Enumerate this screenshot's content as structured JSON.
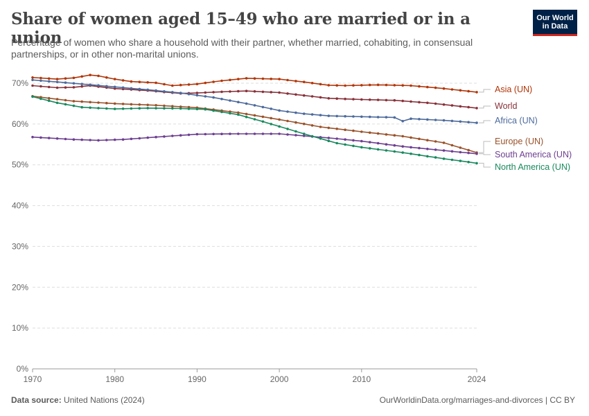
{
  "header": {
    "title": "Share of women aged 15–49 who are married or in a union",
    "subtitle": "Percentage of women who share a household with their partner, whether married, cohabiting, in consensual partnerships, or in other non-marital unions."
  },
  "logo": {
    "line1": "Our World",
    "line2": "in Data"
  },
  "footer": {
    "source_label": "Data source:",
    "source_value": "United Nations (2024)",
    "url": "OurWorldinData.org/marriages-and-divorces | CC BY"
  },
  "chart_data": {
    "type": "line",
    "title": "Share of women aged 15–49 who are married or in a union",
    "xlabel": "",
    "ylabel": "",
    "xlim": [
      1970,
      2024
    ],
    "ylim": [
      0,
      70
    ],
    "x_ticks": [
      1970,
      1980,
      1990,
      2000,
      2010,
      2024
    ],
    "x_tick_labels": [
      "1970",
      "1980",
      "1990",
      "2000",
      "2010",
      "2024"
    ],
    "y_ticks": [
      0,
      10,
      20,
      30,
      40,
      50,
      60,
      70
    ],
    "y_tick_labels": [
      "0%",
      "10%",
      "20%",
      "30%",
      "40%",
      "50%",
      "60%",
      "70%"
    ],
    "grid": "horizontal dashed",
    "legend": "labels at right end of lines",
    "series": [
      {
        "name": "Asia (UN)",
        "color": "#b13507",
        "points": [
          [
            1970,
            71.4
          ],
          [
            1973,
            71.0
          ],
          [
            1975,
            71.3
          ],
          [
            1977,
            72.0
          ],
          [
            1978,
            71.8
          ],
          [
            1980,
            71.0
          ],
          [
            1982,
            70.4
          ],
          [
            1985,
            70.1
          ],
          [
            1987,
            69.4
          ],
          [
            1990,
            69.8
          ],
          [
            1993,
            70.6
          ],
          [
            1996,
            71.2
          ],
          [
            2000,
            71.0
          ],
          [
            2003,
            70.3
          ],
          [
            2006,
            69.5
          ],
          [
            2008,
            69.4
          ],
          [
            2012,
            69.6
          ],
          [
            2016,
            69.4
          ],
          [
            2020,
            68.7
          ],
          [
            2024,
            67.8
          ]
        ]
      },
      {
        "name": "World",
        "color": "#883039",
        "points": [
          [
            1970,
            69.4
          ],
          [
            1973,
            68.9
          ],
          [
            1975,
            69.0
          ],
          [
            1977,
            69.4
          ],
          [
            1980,
            68.7
          ],
          [
            1984,
            68.2
          ],
          [
            1988,
            67.5
          ],
          [
            1990,
            67.6
          ],
          [
            1993,
            67.9
          ],
          [
            1996,
            68.1
          ],
          [
            2000,
            67.7
          ],
          [
            2003,
            67.0
          ],
          [
            2006,
            66.3
          ],
          [
            2010,
            66.0
          ],
          [
            2014,
            65.8
          ],
          [
            2018,
            65.2
          ],
          [
            2024,
            63.9
          ]
        ]
      },
      {
        "name": "Africa (UN)",
        "color": "#4c6a9c",
        "points": [
          [
            1970,
            70.8
          ],
          [
            1973,
            70.3
          ],
          [
            1976,
            69.8
          ],
          [
            1980,
            69.1
          ],
          [
            1984,
            68.4
          ],
          [
            1988,
            67.6
          ],
          [
            1992,
            66.5
          ],
          [
            1996,
            65.0
          ],
          [
            2000,
            63.3
          ],
          [
            2003,
            62.5
          ],
          [
            2006,
            62.0
          ],
          [
            2010,
            61.8
          ],
          [
            2014,
            61.6
          ],
          [
            2015,
            60.7
          ],
          [
            2016,
            61.3
          ],
          [
            2020,
            60.9
          ],
          [
            2024,
            60.3
          ]
        ]
      },
      {
        "name": "Europe (UN)",
        "color": "#9a5129",
        "points": [
          [
            1970,
            66.8
          ],
          [
            1975,
            65.6
          ],
          [
            1980,
            65.0
          ],
          [
            1985,
            64.6
          ],
          [
            1990,
            64.0
          ],
          [
            1995,
            62.8
          ],
          [
            2000,
            61.1
          ],
          [
            2005,
            59.3
          ],
          [
            2010,
            58.1
          ],
          [
            2015,
            57.0
          ],
          [
            2020,
            55.4
          ],
          [
            2024,
            53.0
          ]
        ]
      },
      {
        "name": "South America (UN)",
        "color": "#6d3e91",
        "points": [
          [
            1970,
            56.8
          ],
          [
            1975,
            56.2
          ],
          [
            1978,
            56.0
          ],
          [
            1981,
            56.2
          ],
          [
            1985,
            56.8
          ],
          [
            1990,
            57.5
          ],
          [
            1995,
            57.6
          ],
          [
            2000,
            57.6
          ],
          [
            2003,
            57.1
          ],
          [
            2006,
            56.6
          ],
          [
            2010,
            55.8
          ],
          [
            2015,
            54.5
          ],
          [
            2020,
            53.5
          ],
          [
            2024,
            52.7
          ]
        ]
      },
      {
        "name": "North America (UN)",
        "color": "#18895e",
        "points": [
          [
            1970,
            66.7
          ],
          [
            1973,
            65.2
          ],
          [
            1976,
            64.1
          ],
          [
            1980,
            63.7
          ],
          [
            1984,
            63.9
          ],
          [
            1988,
            63.8
          ],
          [
            1991,
            63.6
          ],
          [
            1995,
            62.3
          ],
          [
            1998,
            60.6
          ],
          [
            2001,
            58.8
          ],
          [
            2004,
            57.0
          ],
          [
            2007,
            55.3
          ],
          [
            2010,
            54.3
          ],
          [
            2015,
            53.0
          ],
          [
            2020,
            51.5
          ],
          [
            2024,
            50.4
          ]
        ]
      }
    ]
  }
}
